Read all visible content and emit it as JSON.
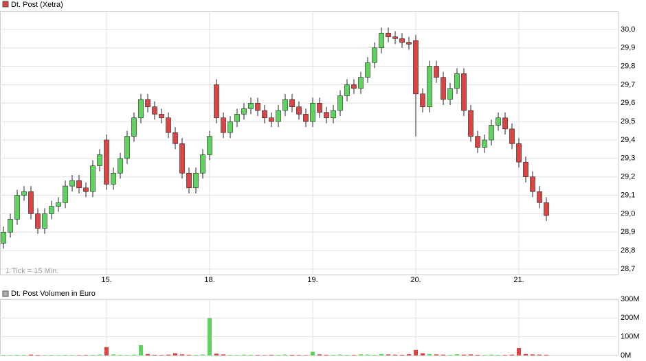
{
  "chart_data": [
    {
      "type": "candlestick",
      "title": "Dt. Post (Xetra)",
      "note": "1 Tick = 15 Min.",
      "up_color": "#5fd35f",
      "down_color": "#d94444",
      "title_color": "#d94444",
      "xlim": [
        0,
        90
      ],
      "xticks": [
        {
          "value": 15.5,
          "label": "15."
        },
        {
          "value": 30.5,
          "label": "18."
        },
        {
          "value": 45.5,
          "label": "19."
        },
        {
          "value": 60.5,
          "label": "20."
        },
        {
          "value": 75.5,
          "label": "21."
        }
      ],
      "ylim": [
        28.67,
        30.1
      ],
      "yticks": [
        {
          "value": 28.7,
          "label": "28,7"
        },
        {
          "value": 28.8,
          "label": "28,8"
        },
        {
          "value": 28.9,
          "label": "28,9"
        },
        {
          "value": 29,
          "label": "29,0"
        },
        {
          "value": 29.1,
          "label": "29,1"
        },
        {
          "value": 29.2,
          "label": "29,2"
        },
        {
          "value": 29.3,
          "label": "29,3"
        },
        {
          "value": 29.4,
          "label": "29,4"
        },
        {
          "value": 29.5,
          "label": "29,5"
        },
        {
          "value": 29.6,
          "label": "29,6"
        },
        {
          "value": 29.7,
          "label": "29,7"
        },
        {
          "value": 29.8,
          "label": "29,8"
        },
        {
          "value": 29.9,
          "label": "29,9"
        },
        {
          "value": 30,
          "label": "30,0"
        }
      ],
      "grid": true,
      "open": [
        28.84,
        28.9,
        28.97,
        29.1,
        29.12,
        29.0,
        28.92,
        29.0,
        29.04,
        29.06,
        29.15,
        29.18,
        29.14,
        29.12,
        29.26,
        29.4,
        29.16,
        29.22,
        29.3,
        29.42,
        29.52,
        29.62,
        29.58,
        29.54,
        29.52,
        29.44,
        29.38,
        29.22,
        29.14,
        29.22,
        29.32,
        29.7,
        29.52,
        29.44,
        29.5,
        29.54,
        29.57,
        29.6,
        29.56,
        29.52,
        29.5,
        29.56,
        29.62,
        29.58,
        29.54,
        29.5,
        29.6,
        29.55,
        29.52,
        29.56,
        29.64,
        29.7,
        29.68,
        29.74,
        29.82,
        29.9,
        29.98,
        29.96,
        29.95,
        29.93,
        29.94,
        29.65,
        29.58,
        29.8,
        29.74,
        29.62,
        29.68,
        29.76,
        29.56,
        29.42,
        29.36,
        29.4,
        29.48,
        29.52,
        29.46,
        29.38,
        29.28,
        29.2,
        29.12,
        29.06
      ],
      "high": [
        28.93,
        29.0,
        29.13,
        29.15,
        29.15,
        29.03,
        29.03,
        29.07,
        29.09,
        29.18,
        29.21,
        29.21,
        29.17,
        29.29,
        29.35,
        29.43,
        29.25,
        29.33,
        29.45,
        29.55,
        29.65,
        29.65,
        29.61,
        29.57,
        29.55,
        29.47,
        29.41,
        29.25,
        29.25,
        29.35,
        29.45,
        29.73,
        29.55,
        29.53,
        29.57,
        29.6,
        29.63,
        29.63,
        29.59,
        29.55,
        29.59,
        29.65,
        29.65,
        29.61,
        29.57,
        29.63,
        29.63,
        29.58,
        29.59,
        29.67,
        29.73,
        29.73,
        29.77,
        29.85,
        29.93,
        30.01,
        30.01,
        29.99,
        29.98,
        29.96,
        29.97,
        29.68,
        29.83,
        29.83,
        29.77,
        29.71,
        29.79,
        29.79,
        29.59,
        29.45,
        29.43,
        29.51,
        29.55,
        29.55,
        29.49,
        29.41,
        29.31,
        29.23,
        29.15,
        29.09
      ],
      "low": [
        28.81,
        28.87,
        28.94,
        29.07,
        28.97,
        28.89,
        28.89,
        28.97,
        29.01,
        29.03,
        29.12,
        29.11,
        29.09,
        29.09,
        29.23,
        29.13,
        29.13,
        29.19,
        29.27,
        29.39,
        29.49,
        29.55,
        29.51,
        29.49,
        29.41,
        29.35,
        29.19,
        29.11,
        29.11,
        29.19,
        29.29,
        29.49,
        29.41,
        29.41,
        29.47,
        29.51,
        29.54,
        29.53,
        29.49,
        29.47,
        29.47,
        29.53,
        29.55,
        29.51,
        29.47,
        29.47,
        29.52,
        29.49,
        29.49,
        29.53,
        29.61,
        29.65,
        29.65,
        29.71,
        29.79,
        29.87,
        29.93,
        29.92,
        29.9,
        29.89,
        29.42,
        29.55,
        29.55,
        29.71,
        29.59,
        29.59,
        29.65,
        29.53,
        29.39,
        29.33,
        29.33,
        29.37,
        29.45,
        29.43,
        29.35,
        29.25,
        29.17,
        29.09,
        29.03,
        28.96
      ],
      "close": [
        28.9,
        28.97,
        29.1,
        29.12,
        29.0,
        28.92,
        29.0,
        29.04,
        29.06,
        29.15,
        29.18,
        29.14,
        29.12,
        29.26,
        29.32,
        29.16,
        29.22,
        29.3,
        29.42,
        29.52,
        29.62,
        29.58,
        29.54,
        29.52,
        29.44,
        29.38,
        29.22,
        29.14,
        29.22,
        29.32,
        29.42,
        29.52,
        29.44,
        29.5,
        29.54,
        29.57,
        29.6,
        29.56,
        29.52,
        29.5,
        29.56,
        29.62,
        29.58,
        29.54,
        29.5,
        29.6,
        29.55,
        29.52,
        29.56,
        29.64,
        29.7,
        29.68,
        29.74,
        29.82,
        29.9,
        29.98,
        29.96,
        29.95,
        29.93,
        29.92,
        29.65,
        29.58,
        29.8,
        29.74,
        29.62,
        29.68,
        29.76,
        29.56,
        29.42,
        29.36,
        29.4,
        29.48,
        29.52,
        29.46,
        29.38,
        29.28,
        29.2,
        29.12,
        29.06,
        28.99
      ]
    },
    {
      "type": "bar",
      "title": "Dt. Post Volumen in Euro",
      "title_color": "#b0b0b0",
      "xlim": [
        0,
        90
      ],
      "ylim": [
        0,
        300
      ],
      "yticks": [
        {
          "value": 0,
          "label": "0M"
        },
        {
          "value": 100,
          "label": "100M"
        },
        {
          "value": 200,
          "label": "200M"
        },
        {
          "value": 300,
          "label": "300M"
        }
      ],
      "grid": true,
      "values": [
        3,
        2,
        4,
        3,
        5,
        3,
        2,
        3,
        2,
        4,
        3,
        2,
        3,
        4,
        5,
        45,
        6,
        4,
        3,
        5,
        55,
        8,
        4,
        3,
        5,
        12,
        6,
        4,
        3,
        5,
        200,
        10,
        6,
        4,
        3,
        5,
        4,
        3,
        2,
        4,
        3,
        5,
        4,
        3,
        2,
        20,
        6,
        4,
        3,
        5,
        4,
        3,
        6,
        5,
        4,
        8,
        6,
        5,
        4,
        7,
        30,
        12,
        8,
        6,
        5,
        4,
        7,
        5,
        6,
        4,
        3,
        5,
        4,
        3,
        5,
        40,
        8,
        6,
        5,
        4
      ]
    }
  ]
}
